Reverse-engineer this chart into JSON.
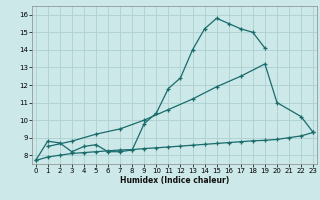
{
  "xlabel": "Humidex (Indice chaleur)",
  "bg_color": "#cce8e8",
  "grid_color": "#aed0d0",
  "line_color": "#1a6b6b",
  "ylim": [
    7.5,
    16.5
  ],
  "xlim": [
    -0.3,
    23.3
  ],
  "yticks": [
    8,
    9,
    10,
    11,
    12,
    13,
    14,
    15,
    16
  ],
  "xticks": [
    0,
    1,
    2,
    3,
    4,
    5,
    6,
    7,
    8,
    9,
    10,
    11,
    12,
    13,
    14,
    15,
    16,
    17,
    18,
    19,
    20,
    21,
    22,
    23
  ],
  "top_x": [
    0,
    1,
    2,
    3,
    4,
    5,
    6,
    7,
    8,
    9,
    10,
    11,
    12,
    13,
    14,
    15,
    16,
    17,
    18,
    19
  ],
  "top_y": [
    7.7,
    8.8,
    8.7,
    8.2,
    8.5,
    8.6,
    8.2,
    8.2,
    8.3,
    9.8,
    10.4,
    11.8,
    12.4,
    14.0,
    15.2,
    15.8,
    15.5,
    15.2,
    15.0,
    14.1
  ],
  "mid_x": [
    1,
    3,
    5,
    7,
    9,
    11,
    13,
    15,
    17,
    19,
    20,
    22,
    23
  ],
  "mid_y": [
    8.5,
    8.8,
    9.2,
    9.5,
    10.0,
    10.6,
    11.2,
    11.9,
    12.5,
    13.2,
    11.0,
    10.2,
    9.3
  ],
  "bot_x": [
    0,
    1,
    2,
    3,
    4,
    5,
    6,
    7,
    8,
    9,
    10,
    11,
    12,
    13,
    14,
    15,
    16,
    17,
    18,
    19,
    20,
    21,
    22,
    23
  ],
  "bot_y": [
    7.7,
    7.9,
    8.0,
    8.1,
    8.15,
    8.2,
    8.25,
    8.3,
    8.32,
    8.38,
    8.42,
    8.47,
    8.52,
    8.57,
    8.62,
    8.67,
    8.72,
    8.77,
    8.82,
    8.85,
    8.9,
    9.0,
    9.1,
    9.3
  ]
}
